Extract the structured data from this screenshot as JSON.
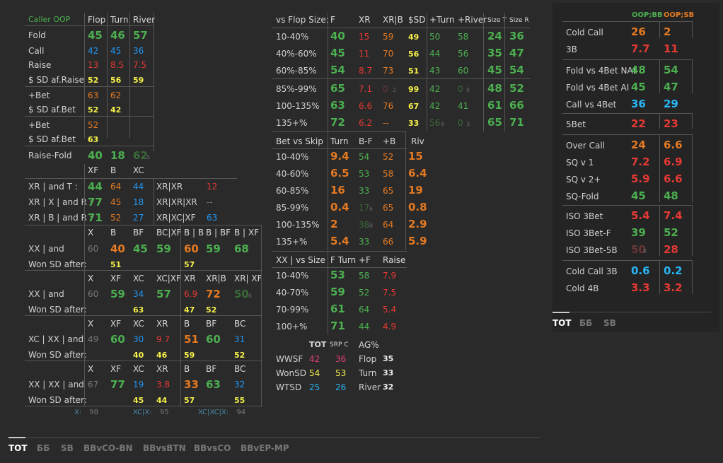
{
  "colors": {
    "green": "#4caf50",
    "orange": "#e57a22",
    "red": "#e53935",
    "blue": "#2196f3",
    "cyan": "#29b6f6",
    "yellow": "#f5f04a"
  },
  "left": {
    "title": "Caller OOP",
    "h_flop": "Flop",
    "h_turn": "Turn",
    "h_river": "River",
    "r1": {
      "l": "Fold",
      "a": "45",
      "b": "46",
      "c": "57"
    },
    "r2": {
      "l": "Call",
      "a": "42",
      "b": "45",
      "c": "36"
    },
    "r3": {
      "l": "Raise",
      "a": "13",
      "b": "8.5",
      "c": "7.5"
    },
    "r4": {
      "l": "$ SD af.Raise",
      "a": "52",
      "b": "56",
      "c": "59"
    },
    "r5": {
      "l": "+Bet",
      "a": "63",
      "b": "62"
    },
    "r6": {
      "l": "$ SD af.Bet",
      "a": "52",
      "b": "42"
    },
    "r7": {
      "l": "+Bet",
      "a": "52"
    },
    "r8": {
      "l": "$ SD af.Bet",
      "a": "63"
    },
    "r9": {
      "l": "Raise-Fold",
      "a": "40",
      "b": "18",
      "c": "62",
      "cs": "5"
    },
    "xh": {
      "a": "XF",
      "b": "B",
      "c": "XC"
    },
    "xr1": {
      "l": "XR | and T :",
      "a": "44",
      "b": "64",
      "c": "44",
      "l2": "XR|XR",
      "d": "12"
    },
    "xr2": {
      "l": "XR | X | and R :",
      "a": "77",
      "b": "45",
      "c": "18",
      "l2": "XR|XR|XR",
      "d": "--"
    },
    "xr3": {
      "l": "XR | B | and R :",
      "a": "71",
      "b": "52",
      "c": "27",
      "l2": "XR|XC|XF",
      "d": "63"
    },
    "g1h": [
      "X",
      "B",
      "BF",
      "BC|XF",
      "B | B",
      "B | BF",
      "B | XF"
    ],
    "g1a": {
      "l": "XX | and",
      "x": "60",
      "b": "40",
      "bf": "45",
      "bc": "59",
      "bb": "60",
      "bbf": "59",
      "bxf": "68"
    },
    "g1b": {
      "l": "Won SD after:",
      "b": "51",
      "bb": "57"
    },
    "g2h": [
      "X",
      "XF",
      "XC",
      "XC|XF",
      "XR",
      "XR|B",
      "XR| XF"
    ],
    "g2a": {
      "l": "XX | and",
      "x": "60",
      "xf": "59",
      "xc": "34",
      "xcxf": "57",
      "xr": "6.9",
      "xrb": "72",
      "xrxf": "50",
      "xrxfs": "6"
    },
    "g2b": {
      "l": "Won SD after:",
      "xf": "63",
      "xr": "47",
      "xrb": "52"
    },
    "g3h": [
      "X",
      "XF",
      "XC",
      "XR",
      "B",
      "BF",
      "BC"
    ],
    "g3a": {
      "l": "XC | XX | and",
      "x": "49",
      "xf": "60",
      "xc": "30",
      "xr": "9.7",
      "b": "51",
      "bf": "60",
      "bc": "31"
    },
    "g3b": {
      "l": "Won SD after:",
      "xc": "40",
      "xr": "46",
      "b": "59",
      "bc": "52"
    },
    "g4h": [
      "X",
      "XF",
      "XC",
      "XR",
      "B",
      "BF",
      "BC"
    ],
    "g4a": {
      "l": "XX | XX | and",
      "x": "67",
      "xf": "77",
      "xc": "19",
      "xr": "3.8",
      "b": "33",
      "bf": "63",
      "bc": "32"
    },
    "g4b": {
      "l": "Won SD after:",
      "xc": "45",
      "xr": "44",
      "b": "57",
      "bc": "55"
    },
    "foot": {
      "l1": "X:",
      "v1": "98",
      "l2": "XC|X:",
      "v2": "95",
      "l3": "XC|XC|X:",
      "v3": "94"
    }
  },
  "mid": {
    "h": [
      "vs Flop Size:",
      "F",
      "XR",
      "XR|B",
      "$SD",
      "+Turn",
      "+River",
      "Size T",
      "Size R"
    ],
    "rows": [
      {
        "l": "10-40%",
        "f": "40",
        "xr": "15",
        "xrb": "59",
        "sd": "49",
        "t": "50",
        "rv": "58",
        "st": "24",
        "sr": "36"
      },
      {
        "l": "40%-60%",
        "f": "45",
        "xr": "11",
        "xrb": "70",
        "sd": "56",
        "t": "44",
        "rv": "56",
        "st": "35",
        "sr": "47"
      },
      {
        "l": "60%-85%",
        "f": "54",
        "xr": "8.7",
        "xrb": "73",
        "sd": "51",
        "t": "43",
        "rv": "60",
        "st": "45",
        "sr": "54"
      },
      {
        "l": "85%-99%",
        "f": "65",
        "xr": "7.1",
        "xrb": "0",
        "xrbs": "2",
        "sd": "99",
        "t": "42",
        "rv": "0",
        "rvs": "5",
        "st": "48",
        "sr": "52"
      },
      {
        "l": "100-135%",
        "f": "63",
        "xr": "6.6",
        "xrb": "76",
        "sd": "67",
        "t": "42",
        "rv": "41",
        "st": "61",
        "sr": "66"
      },
      {
        "l": "135+%",
        "f": "72",
        "xr": "6.2",
        "xrb": "--",
        "sd": "33",
        "t": "56",
        "ts": "8",
        "rv": "0",
        "rvs": "3",
        "st": "65",
        "sr": "71"
      }
    ],
    "bh": [
      "Bet vs Skip",
      "Turn",
      "B-F",
      "+B",
      "Riv"
    ],
    "brows": [
      {
        "l": "10-40%",
        "t": "9.4",
        "bf": "54",
        "b": "52",
        "r": "15"
      },
      {
        "l": "40-60%",
        "t": "6.5",
        "bf": "53",
        "b": "58",
        "r": "6.4"
      },
      {
        "l": "60-85%",
        "t": "16",
        "bf": "33",
        "b": "65",
        "r": "19"
      },
      {
        "l": "85-99%",
        "t": "0.4",
        "bf": "17",
        "bfs": "6",
        "b": "65",
        "r": "0.8"
      },
      {
        "l": "100-135%",
        "t": "2",
        "bf": "38",
        "bfs": "8",
        "b": "64",
        "r": "2.9"
      },
      {
        "l": "135+%",
        "t": "5.4",
        "bf": "33",
        "b": "66",
        "r": "5.9"
      }
    ],
    "xh": [
      "XX | vs Size",
      "F Turn",
      "+F",
      "Raise"
    ],
    "xrows": [
      {
        "l": "10-40%",
        "f": "53",
        "pf": "58",
        "r": "7.9"
      },
      {
        "l": "40-70%",
        "f": "59",
        "pf": "52",
        "r": "7.5"
      },
      {
        "l": "70-99%",
        "f": "61",
        "pf": "64",
        "r": "5.4"
      },
      {
        "l": "100+%",
        "f": "71",
        "pf": "44",
        "r": "4.9"
      }
    ],
    "tot": {
      "h1": "TOT",
      "h2": "SRP C",
      "h3": "AG%",
      "w1": "WWSF",
      "w1a": "42",
      "w1b": "36",
      "a1": "Flop",
      "a1v": "35",
      "w2": "WonSD",
      "w2a": "54",
      "w2b": "53",
      "a2": "Turn",
      "a2v": "33",
      "w3": "WTSD",
      "w3a": "25",
      "w3b": "26",
      "a3": "River",
      "a3v": "32"
    }
  },
  "right": {
    "h1": "OOP;BB",
    "h2": "OOP;SB",
    "rows": [
      {
        "l": "Cold Call",
        "a": "26",
        "b": "2"
      },
      {
        "l": "3B",
        "a": "7.7",
        "b": "11"
      },
      {
        "l": "Fold vs 4Bet NAI",
        "a": "48",
        "b": "54"
      },
      {
        "l": "Fold vs 4Bet AI",
        "a": "45",
        "b": "47"
      },
      {
        "l": "Call vs 4Bet",
        "a": "36",
        "b": "29"
      },
      {
        "l": "5Bet",
        "a": "22",
        "b": "23"
      },
      {
        "l": "Over Call",
        "a": "24",
        "b": "6.6"
      },
      {
        "l": "SQ v 1",
        "a": "7.2",
        "b": "6.9"
      },
      {
        "l": "SQ v 2+",
        "a": "5.9",
        "b": "6.6"
      },
      {
        "l": "SQ-Fold",
        "a": "45",
        "b": "48"
      },
      {
        "l": "ISO 3Bet",
        "a": "5.4",
        "b": "7.4"
      },
      {
        "l": "ISO 3Bet-F",
        "a": "39",
        "b": "52"
      },
      {
        "l": "ISO 3Bet-5B",
        "a": "50",
        "as": "8",
        "b": "28"
      },
      {
        "l": "Cold Call 3B",
        "a": "0.6",
        "b": "0.2"
      },
      {
        "l": "Cold 4B",
        "a": "3.3",
        "b": "3.2"
      }
    ],
    "tabs": [
      "TOT",
      "ББ",
      "SB"
    ]
  },
  "bottom_tabs": [
    "TOT",
    "ББ",
    "SB",
    "BBvCO-BN",
    "BBvsBTN",
    "BBvsCO",
    "BBvEP-MP"
  ]
}
